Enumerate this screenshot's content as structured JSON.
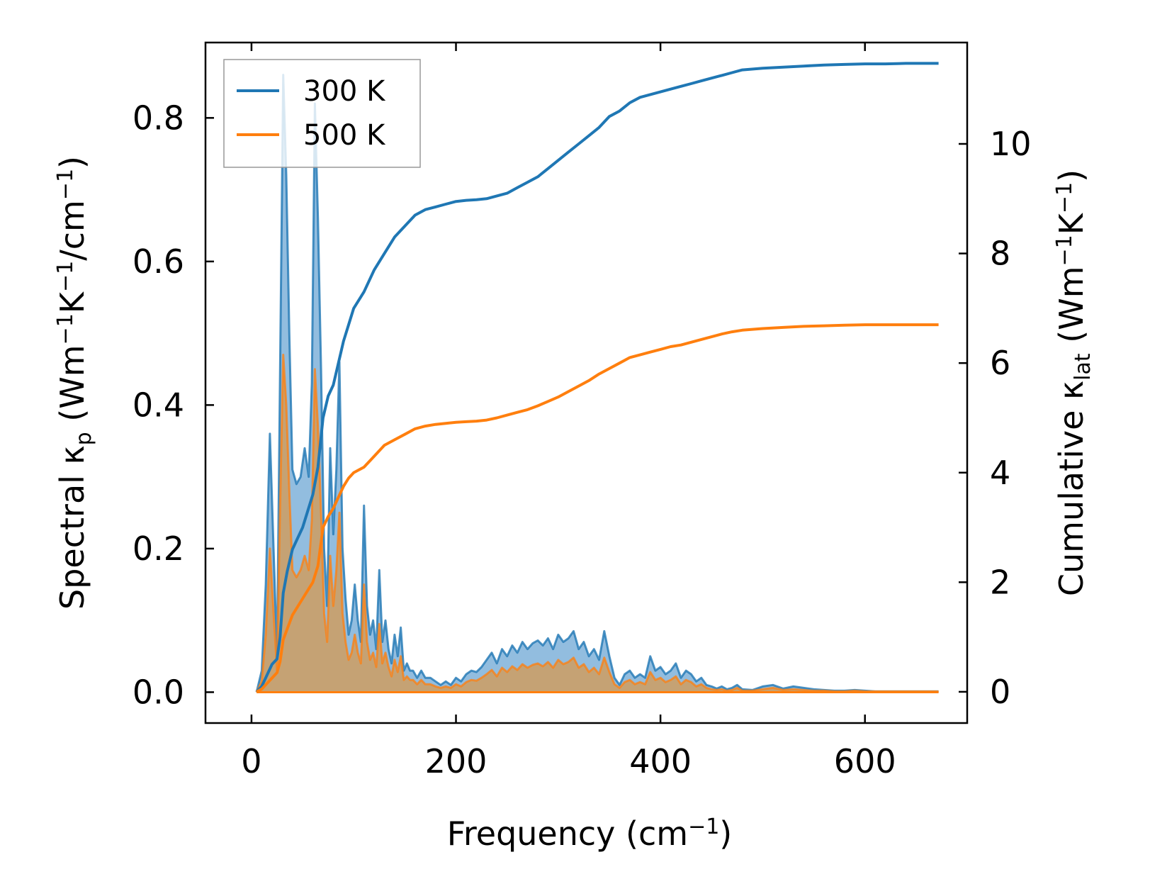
{
  "chart_data": {
    "type": "line",
    "xlabel_main": "Frequency (cm",
    "xlabel_sup": "−1",
    "xlabel_end": ")",
    "ylabel_left": {
      "p1": "Spectral κ",
      "sub1": "p",
      "p2": " (Wm",
      "sup1": "−1",
      "p3": "K",
      "sup2": "−1",
      "p4": "/cm",
      "sup3": "−1",
      "p5": ")"
    },
    "ylabel_right": {
      "p1": "Cumulative κ",
      "sub1": "lat",
      "p2": " (Wm",
      "sup1": "−1",
      "p3": "K",
      "sup2": "−1",
      "p4": ")"
    },
    "xlim": [
      -45,
      700
    ],
    "ylim_left": [
      -0.043,
      0.905
    ],
    "ylim_right": [
      -0.57,
      11.85
    ],
    "xticks": [
      0,
      200,
      400,
      600
    ],
    "xtick_labels": [
      "0",
      "200",
      "400",
      "600"
    ],
    "yticks_left": [
      0.0,
      0.2,
      0.4,
      0.6,
      0.8
    ],
    "ytick_labels_left": [
      "0.0",
      "0.2",
      "0.4",
      "0.6",
      "0.8"
    ],
    "yticks_right": [
      0,
      2,
      4,
      6,
      8,
      10
    ],
    "ytick_labels_right": [
      "0",
      "2",
      "4",
      "6",
      "8",
      "10"
    ],
    "legend": {
      "position": "top-left",
      "entries": [
        "300 K",
        "500 K"
      ]
    },
    "colors": {
      "s300": "#1f77b4",
      "s500": "#ff7f0e",
      "fill300": "#7fb2d9",
      "fill500": "#c8a06e"
    },
    "spectral_300K": {
      "x": [
        5,
        10,
        14,
        18,
        22,
        25,
        28,
        31,
        34,
        37,
        40,
        44,
        48,
        52,
        56,
        59,
        62,
        65,
        68,
        71,
        74,
        77,
        80,
        83,
        86,
        89,
        92,
        95,
        98,
        101,
        104,
        107,
        110,
        113,
        116,
        119,
        122,
        125,
        128,
        131,
        134,
        137,
        140,
        143,
        146,
        149,
        152,
        155,
        158,
        162,
        166,
        170,
        175,
        180,
        185,
        190,
        195,
        200,
        205,
        210,
        215,
        220,
        225,
        230,
        235,
        240,
        245,
        250,
        255,
        260,
        265,
        270,
        275,
        280,
        285,
        290,
        295,
        300,
        305,
        310,
        315,
        320,
        325,
        330,
        335,
        340,
        345,
        350,
        355,
        360,
        365,
        370,
        375,
        380,
        385,
        390,
        395,
        400,
        405,
        410,
        415,
        420,
        425,
        430,
        435,
        440,
        445,
        450,
        455,
        460,
        465,
        470,
        475,
        480,
        490,
        500,
        510,
        520,
        530,
        540,
        550,
        560,
        570,
        580,
        590,
        600,
        610,
        620,
        630,
        640,
        650,
        660,
        672
      ],
      "y": [
        0.0,
        0.03,
        0.15,
        0.36,
        0.18,
        0.05,
        0.45,
        0.86,
        0.72,
        0.5,
        0.31,
        0.29,
        0.3,
        0.34,
        0.3,
        0.43,
        0.82,
        0.66,
        0.45,
        0.2,
        0.12,
        0.34,
        0.22,
        0.31,
        0.46,
        0.2,
        0.13,
        0.08,
        0.1,
        0.15,
        0.1,
        0.07,
        0.26,
        0.12,
        0.08,
        0.1,
        0.06,
        0.17,
        0.07,
        0.1,
        0.06,
        0.04,
        0.08,
        0.05,
        0.09,
        0.03,
        0.04,
        0.03,
        0.03,
        0.02,
        0.03,
        0.02,
        0.02,
        0.015,
        0.01,
        0.015,
        0.01,
        0.02,
        0.015,
        0.025,
        0.03,
        0.028,
        0.035,
        0.045,
        0.055,
        0.04,
        0.06,
        0.05,
        0.065,
        0.055,
        0.07,
        0.06,
        0.068,
        0.072,
        0.065,
        0.075,
        0.06,
        0.08,
        0.07,
        0.075,
        0.085,
        0.06,
        0.07,
        0.05,
        0.06,
        0.045,
        0.085,
        0.05,
        0.02,
        0.01,
        0.025,
        0.03,
        0.02,
        0.025,
        0.02,
        0.05,
        0.03,
        0.035,
        0.025,
        0.03,
        0.04,
        0.02,
        0.03,
        0.025,
        0.015,
        0.02,
        0.01,
        0.008,
        0.005,
        0.008,
        0.004,
        0.006,
        0.01,
        0.004,
        0.003,
        0.008,
        0.01,
        0.005,
        0.008,
        0.006,
        0.004,
        0.003,
        0.002,
        0.002,
        0.003,
        0.002,
        0.001,
        0.001,
        0.001,
        0.001,
        0.001,
        0.001,
        0.001
      ]
    },
    "spectral_500K": {
      "x": [
        5,
        10,
        14,
        18,
        22,
        25,
        28,
        31,
        34,
        37,
        40,
        44,
        48,
        52,
        56,
        59,
        62,
        65,
        68,
        71,
        74,
        77,
        80,
        83,
        86,
        89,
        92,
        95,
        98,
        101,
        104,
        107,
        110,
        113,
        116,
        119,
        122,
        125,
        128,
        131,
        134,
        137,
        140,
        143,
        146,
        149,
        152,
        155,
        158,
        162,
        166,
        170,
        175,
        180,
        185,
        190,
        195,
        200,
        205,
        210,
        215,
        220,
        225,
        230,
        235,
        240,
        245,
        250,
        255,
        260,
        265,
        270,
        275,
        280,
        285,
        290,
        295,
        300,
        305,
        310,
        315,
        320,
        325,
        330,
        335,
        340,
        345,
        350,
        355,
        360,
        365,
        370,
        375,
        380,
        385,
        390,
        395,
        400,
        405,
        410,
        415,
        420,
        425,
        430,
        435,
        440,
        445,
        450,
        455,
        460,
        465,
        470,
        475,
        480,
        490,
        500,
        510,
        520,
        530,
        540,
        550,
        560,
        570,
        580,
        590,
        600,
        610,
        620,
        630,
        640,
        650,
        660,
        672
      ],
      "y": [
        0.0,
        0.015,
        0.08,
        0.2,
        0.1,
        0.03,
        0.26,
        0.47,
        0.4,
        0.28,
        0.17,
        0.16,
        0.17,
        0.19,
        0.17,
        0.24,
        0.45,
        0.37,
        0.25,
        0.11,
        0.07,
        0.19,
        0.12,
        0.17,
        0.25,
        0.11,
        0.07,
        0.045,
        0.055,
        0.08,
        0.055,
        0.04,
        0.15,
        0.07,
        0.045,
        0.055,
        0.035,
        0.095,
        0.04,
        0.055,
        0.035,
        0.022,
        0.045,
        0.028,
        0.05,
        0.017,
        0.022,
        0.017,
        0.017,
        0.011,
        0.017,
        0.011,
        0.011,
        0.008,
        0.006,
        0.008,
        0.006,
        0.011,
        0.008,
        0.014,
        0.017,
        0.016,
        0.02,
        0.025,
        0.031,
        0.022,
        0.034,
        0.028,
        0.036,
        0.031,
        0.039,
        0.034,
        0.038,
        0.04,
        0.036,
        0.042,
        0.034,
        0.045,
        0.039,
        0.042,
        0.048,
        0.034,
        0.039,
        0.028,
        0.034,
        0.025,
        0.048,
        0.028,
        0.011,
        0.006,
        0.014,
        0.017,
        0.011,
        0.014,
        0.011,
        0.028,
        0.017,
        0.02,
        0.014,
        0.017,
        0.022,
        0.011,
        0.017,
        0.014,
        0.008,
        0.011,
        0.006,
        0.004,
        0.003,
        0.004,
        0.002,
        0.003,
        0.006,
        0.002,
        0.002,
        0.004,
        0.006,
        0.003,
        0.004,
        0.003,
        0.002,
        0.002,
        0.001,
        0.001,
        0.002,
        0.001,
        0.001,
        0.001,
        0.001,
        0.001,
        0.001,
        0.001,
        0.001
      ]
    },
    "cumulative_300K": {
      "x": [
        5,
        10,
        15,
        20,
        25,
        28,
        31,
        35,
        40,
        45,
        50,
        55,
        60,
        65,
        70,
        75,
        80,
        85,
        90,
        95,
        100,
        110,
        120,
        130,
        140,
        150,
        160,
        170,
        180,
        190,
        200,
        210,
        220,
        230,
        240,
        250,
        260,
        270,
        280,
        290,
        300,
        310,
        320,
        330,
        340,
        350,
        360,
        370,
        380,
        390,
        400,
        410,
        420,
        430,
        440,
        450,
        460,
        470,
        480,
        500,
        520,
        540,
        560,
        580,
        600,
        620,
        640,
        660,
        672
      ],
      "y": [
        0.0,
        0.1,
        0.3,
        0.5,
        0.6,
        1.0,
        1.8,
        2.2,
        2.6,
        2.8,
        3.0,
        3.3,
        3.6,
        4.1,
        5.0,
        5.4,
        5.6,
        6.0,
        6.4,
        6.7,
        7.0,
        7.3,
        7.7,
        8.0,
        8.3,
        8.5,
        8.7,
        8.8,
        8.85,
        8.9,
        8.95,
        8.97,
        8.98,
        9.0,
        9.05,
        9.1,
        9.2,
        9.3,
        9.4,
        9.55,
        9.7,
        9.85,
        10.0,
        10.15,
        10.3,
        10.5,
        10.6,
        10.75,
        10.85,
        10.9,
        10.95,
        11.0,
        11.05,
        11.1,
        11.15,
        11.2,
        11.25,
        11.3,
        11.35,
        11.38,
        11.4,
        11.42,
        11.44,
        11.45,
        11.46,
        11.46,
        11.47,
        11.47,
        11.47
      ]
    },
    "cumulative_500K": {
      "x": [
        5,
        10,
        15,
        20,
        25,
        28,
        31,
        35,
        40,
        45,
        50,
        55,
        60,
        65,
        70,
        75,
        80,
        85,
        90,
        95,
        100,
        110,
        120,
        130,
        140,
        150,
        160,
        170,
        180,
        190,
        200,
        210,
        220,
        230,
        240,
        250,
        260,
        270,
        280,
        290,
        300,
        310,
        320,
        330,
        340,
        350,
        360,
        370,
        380,
        390,
        400,
        410,
        420,
        430,
        440,
        450,
        460,
        470,
        480,
        500,
        520,
        540,
        560,
        580,
        600,
        620,
        640,
        660,
        672
      ],
      "y": [
        0.0,
        0.05,
        0.15,
        0.25,
        0.35,
        0.55,
        0.95,
        1.15,
        1.4,
        1.55,
        1.7,
        1.85,
        2.0,
        2.3,
        3.0,
        3.2,
        3.35,
        3.55,
        3.75,
        3.9,
        4.0,
        4.1,
        4.3,
        4.5,
        4.6,
        4.7,
        4.8,
        4.85,
        4.88,
        4.9,
        4.92,
        4.93,
        4.94,
        4.96,
        5.0,
        5.05,
        5.1,
        5.15,
        5.22,
        5.3,
        5.38,
        5.48,
        5.58,
        5.68,
        5.8,
        5.9,
        6.0,
        6.1,
        6.15,
        6.2,
        6.25,
        6.3,
        6.33,
        6.38,
        6.43,
        6.48,
        6.53,
        6.57,
        6.6,
        6.63,
        6.65,
        6.67,
        6.68,
        6.69,
        6.7,
        6.7,
        6.7,
        6.7,
        6.7
      ]
    }
  }
}
